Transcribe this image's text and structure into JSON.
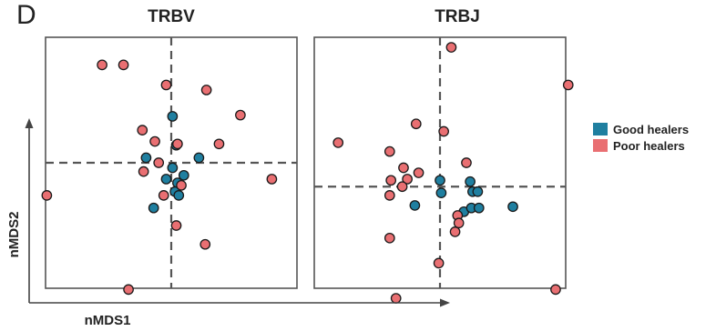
{
  "panel_label": "D",
  "colors": {
    "good": "#1f7fa0",
    "poor": "#e96f72",
    "axis": "#444444",
    "frame": "#555555"
  },
  "axis_labels": {
    "x": "nMDS1",
    "y": "nMDS2"
  },
  "legend": {
    "placement": "right",
    "items": [
      {
        "label": "Good healers",
        "color": "#1f7fa0"
      },
      {
        "label": "Poor healers",
        "color": "#e96f72"
      }
    ]
  },
  "chart_data": [
    {
      "type": "scatter",
      "title": "TRBV",
      "xlim": [
        -1,
        1
      ],
      "ylim": [
        -1,
        1
      ],
      "reference_lines": {
        "x": 0,
        "y": 0
      },
      "series": [
        {
          "name": "Good healers",
          "points": [
            [
              0.01,
              0.37
            ],
            [
              -0.2,
              0.04
            ],
            [
              0.04,
              0.14
            ],
            [
              0.22,
              0.04
            ],
            [
              0.01,
              -0.04
            ],
            [
              0.1,
              -0.1
            ],
            [
              -0.04,
              -0.13
            ],
            [
              0.05,
              -0.16
            ],
            [
              0.03,
              -0.23
            ],
            [
              -0.14,
              -0.36
            ],
            [
              0.06,
              -0.26
            ]
          ]
        },
        {
          "name": "Poor healers",
          "points": [
            [
              -0.55,
              0.78
            ],
            [
              -0.38,
              0.78
            ],
            [
              -0.04,
              0.62
            ],
            [
              0.28,
              0.58
            ],
            [
              0.55,
              0.38
            ],
            [
              -0.23,
              0.26
            ],
            [
              -0.13,
              0.17
            ],
            [
              0.05,
              0.15
            ],
            [
              0.38,
              0.15
            ],
            [
              -0.1,
              0.0
            ],
            [
              -0.22,
              -0.07
            ],
            [
              0.08,
              -0.18
            ],
            [
              -0.06,
              -0.26
            ],
            [
              0.8,
              -0.13
            ],
            [
              -0.99,
              -0.26
            ],
            [
              0.04,
              -0.5
            ],
            [
              0.27,
              -0.65
            ],
            [
              -0.34,
              -1.01
            ]
          ]
        }
      ]
    },
    {
      "type": "scatter",
      "title": "TRBJ",
      "xlim": [
        -1,
        1
      ],
      "ylim": [
        -1,
        1
      ],
      "reference_lines": {
        "x": 0,
        "y": -0.19
      },
      "series": [
        {
          "name": "Good healers",
          "points": [
            [
              0.0,
              -0.14
            ],
            [
              0.01,
              -0.24
            ],
            [
              0.24,
              -0.15
            ],
            [
              0.26,
              -0.23
            ],
            [
              0.3,
              -0.23
            ],
            [
              -0.2,
              -0.34
            ],
            [
              0.19,
              -0.39
            ],
            [
              0.25,
              -0.36
            ],
            [
              0.31,
              -0.36
            ],
            [
              0.58,
              -0.35
            ]
          ]
        },
        {
          "name": "Poor healers",
          "points": [
            [
              0.09,
              0.92
            ],
            [
              1.02,
              0.62
            ],
            [
              -0.81,
              0.16
            ],
            [
              -0.19,
              0.31
            ],
            [
              -0.4,
              0.09
            ],
            [
              0.03,
              0.25
            ],
            [
              -0.29,
              -0.04
            ],
            [
              0.21,
              0.0
            ],
            [
              -0.39,
              -0.14
            ],
            [
              -0.26,
              -0.13
            ],
            [
              -0.17,
              -0.08
            ],
            [
              -0.3,
              -0.19
            ],
            [
              -0.4,
              -0.26
            ],
            [
              0.14,
              -0.42
            ],
            [
              0.15,
              -0.48
            ],
            [
              -0.4,
              -0.6
            ],
            [
              0.12,
              -0.55
            ],
            [
              -0.01,
              -0.8
            ],
            [
              0.92,
              -1.01
            ],
            [
              -0.35,
              -1.08
            ]
          ]
        }
      ]
    }
  ]
}
